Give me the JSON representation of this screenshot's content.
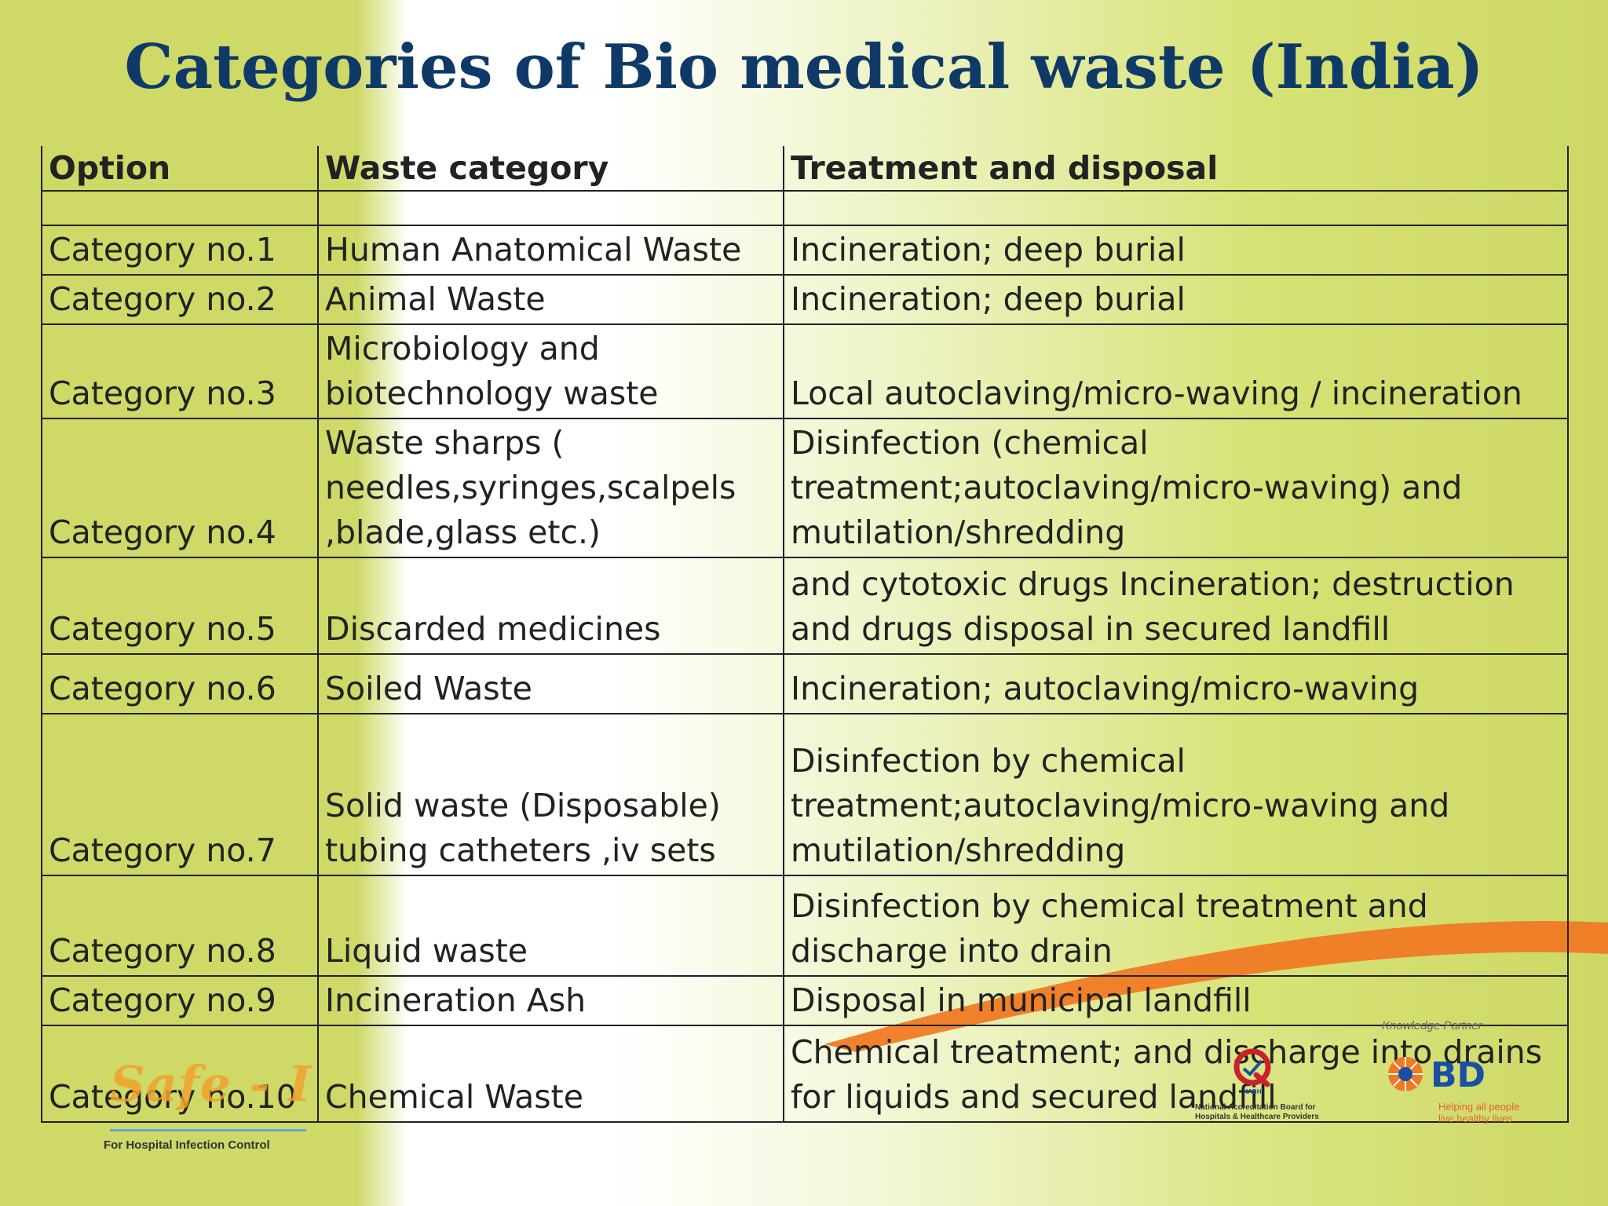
{
  "slide": {
    "title": "Categories of Bio medical waste (India)"
  },
  "table": {
    "headers": [
      "Option",
      "Waste category",
      "Treatment and disposal"
    ],
    "rows": [
      [
        "",
        "",
        ""
      ],
      [
        "Category no.1",
        "Human Anatomical Waste",
        "Incineration; deep burial"
      ],
      [
        "Category no.2",
        "Animal Waste",
        "Incineration; deep burial"
      ],
      [
        "Category no.3",
        "Microbiology and biotechnology waste",
        "Local autoclaving/micro-waving / incineration"
      ],
      [
        "Category no.4",
        "Waste sharps ( needles,syringes,scalpels ,blade,glass etc.)",
        "Disinfection (chemical treatment;autoclaving/micro-waving) and mutilation/shredding"
      ],
      [
        "Category no.5",
        "Discarded medicines",
        "and cytotoxic drugs Incineration; destruction and drugs disposal in secured landfill"
      ],
      [
        "Category no.6",
        "Soiled Waste",
        "Incineration; autoclaving/micro-waving"
      ],
      [
        "Category no.7",
        "Solid waste (Disposable) tubing catheters ,iv sets",
        "Disinfection by chemical treatment;autoclaving/micro-waving and mutilation/shredding"
      ],
      [
        "Category no.8",
        "Liquid waste",
        "Disinfection by chemical treatment and discharge into drain"
      ],
      [
        "Category no.9",
        "Incineration Ash",
        "Disposal in municipal landfill"
      ],
      [
        "Category no.10",
        "Chemical Waste",
        "Chemical treatment; and discharge into drains for liquids and secured landfill"
      ]
    ]
  },
  "logos": {
    "safe_logo_text": "Safe - I",
    "safe_tagline": "For Hospital Infection Control",
    "nabh_abbrev": "NABH",
    "nabh_full": "National Accreditation Board for Hospitals & Healthcare Providers",
    "bd_knowledge": "Knowledge Partner",
    "bd_name": "BD",
    "bd_tagline": "Helping all people live healthy lives"
  },
  "colors": {
    "title": "#0f3a68",
    "background_green": "#cfd968",
    "swoosh": "#f07a24",
    "safe_logo": "#f2a12e",
    "bd_blue": "#1a4fa3"
  }
}
